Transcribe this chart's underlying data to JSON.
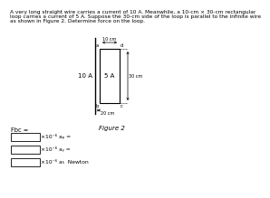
{
  "title_line1": "A very long straight wire carries a current of 10 A. Meanwhile, a 10-cm × 30-cm rectangular",
  "title_line2": "loop carries a current of 5 A. Suppose the 30-cm side of the loop is parallel to the infinite wire",
  "title_line3": "as shown in Figure 2. Determine force on the loop.",
  "figure_label": "Figure 2",
  "wire_current": "10 A",
  "loop_current": "5 A",
  "dim_top": "10 cm",
  "dim_right": "30 cm",
  "dim_bottom": "20 cm",
  "corner_a": "a",
  "corner_d": "d",
  "corner_b": "b",
  "corner_c": "c",
  "formula_prefix": "Fbc =",
  "label1": "×10⁻⁶ aₚ =",
  "label2": "×10⁻⁶ aᵧ =",
  "label3": "×10⁻⁶ a₅  Newton",
  "bg_color": "#ffffff",
  "text_color": "#000000",
  "font_size_title": 4.2,
  "font_size_fig": 5.0,
  "font_size_formula": 4.8
}
